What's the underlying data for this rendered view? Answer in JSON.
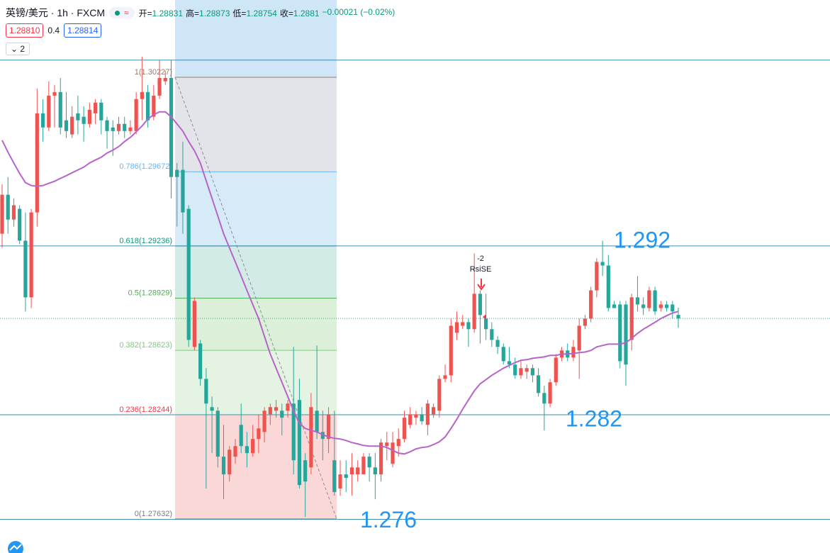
{
  "header": {
    "symbol": "英镑/美元 · 1h · FXCM",
    "ohlc_labels": [
      "开=",
      "高=",
      "低=",
      "收="
    ],
    "change": "−0.00021 (−0.02%)",
    "bid": "1.28810",
    "spread": "0.4",
    "ask": "1.28814",
    "indicators": "2"
  },
  "chart_data": {
    "type": "candlestick",
    "ylim": [
      1.27432,
      1.30681
    ],
    "up_color": "#ef5350",
    "down_color": "#26a69a",
    "ma_color": "#b763c9",
    "open": [
      1.29308,
      1.29537,
      1.29391,
      1.29454,
      1.29267,
      1.28934,
      1.29433,
      1.30015,
      1.29932,
      1.30119,
      1.3014,
      1.29974,
      1.29891,
      1.30015,
      1.29995,
      1.29953,
      1.30015,
      1.30078,
      1.29974,
      1.29932,
      1.29911,
      1.29953,
      1.29911,
      1.29911,
      1.30099,
      1.3014,
      1.29995,
      1.30119,
      1.30203,
      1.30223,
      1.29683,
      1.29683,
      1.29454,
      1.28643,
      1.28663,
      1.28455,
      1.28289,
      1.28268,
      1.27998,
      1.27894,
      1.27998,
      1.28185,
      1.2806,
      1.28019,
      1.28102,
      1.28143,
      1.28247,
      1.28268,
      1.28268,
      1.28268,
      1.2831,
      1.28331,
      1.27977,
      1.27935,
      1.28268,
      1.28143,
      1.28102,
      1.27977,
      1.27811,
      1.27894,
      1.27894,
      1.27894,
      1.27894,
      1.27998,
      1.27935,
      1.27894,
      1.2806,
      1.27956,
      1.2806,
      1.28102,
      1.28185,
      1.28227,
      1.28247,
      1.28185,
      1.28247,
      1.28268,
      1.28455,
      1.28476,
      1.28726,
      1.28767,
      1.28788,
      1.28747,
      1.28955,
      1.28809,
      1.28747,
      1.28684,
      1.28643,
      1.28559,
      1.28539,
      1.28476,
      1.28497,
      1.28518,
      1.28476,
      1.28372,
      1.2831,
      1.28435,
      1.2858,
      1.28622,
      1.2858,
      1.28622,
      1.28767,
      1.28809,
      1.28975,
      1.29142,
      1.29121,
      1.28892,
      1.28892,
      1.28892,
      1.28684,
      1.28934,
      1.28892,
      1.28871,
      1.28975,
      1.28871,
      1.28892,
      1.28892,
      1.28831
    ],
    "high": [
      1.29599,
      1.29641,
      1.29516,
      1.29475,
      1.29433,
      1.29454,
      1.30161,
      1.30099,
      1.30203,
      1.30182,
      1.30223,
      1.3014,
      1.30057,
      1.30119,
      1.30057,
      1.30078,
      1.30099,
      1.30099,
      1.29995,
      1.29974,
      1.29995,
      1.29995,
      1.29974,
      1.3014,
      1.30348,
      1.30182,
      1.30182,
      1.30327,
      1.30265,
      1.30327,
      1.29724,
      1.29849,
      1.29475,
      1.28934,
      1.28684,
      1.28518,
      1.28351,
      1.28289,
      1.28185,
      1.2806,
      1.28102,
      1.2831,
      1.28143,
      1.28185,
      1.28247,
      1.28289,
      1.2831,
      1.28331,
      1.2831,
      1.28331,
      1.28643,
      1.28455,
      1.28019,
      1.28372,
      1.28651,
      1.28268,
      1.28289,
      1.28268,
      1.27977,
      1.27977,
      1.28019,
      1.27977,
      1.28019,
      1.28019,
      1.28019,
      1.28102,
      1.28143,
      1.28143,
      1.28164,
      1.28268,
      1.28289,
      1.28268,
      1.28289,
      1.28331,
      1.2831,
      1.28476,
      1.28539,
      1.28809,
      1.28851,
      1.2883,
      1.28809,
      1.29192,
      1.28975,
      1.28955,
      1.28788,
      1.28705,
      1.28663,
      1.28643,
      1.2858,
      1.28559,
      1.28539,
      1.28539,
      1.28518,
      1.28414,
      1.28455,
      1.28601,
      1.28643,
      1.28663,
      1.28684,
      1.28809,
      1.2883,
      1.28996,
      1.29163,
      1.29267,
      1.29183,
      1.28913,
      1.28913,
      1.28913,
      1.28955,
      1.29059,
      1.28934,
      1.28996,
      1.28996,
      1.28913,
      1.28913,
      1.28913,
      1.28873
    ],
    "low": [
      1.29225,
      1.29308,
      1.2935,
      1.29246,
      1.28851,
      1.28871,
      1.2935,
      1.29849,
      1.29911,
      1.29932,
      1.29891,
      1.2987,
      1.2987,
      1.29891,
      1.29849,
      1.29932,
      1.29953,
      1.29891,
      1.29807,
      1.29766,
      1.29891,
      1.2987,
      1.29891,
      1.29891,
      1.29974,
      1.29932,
      1.29974,
      1.30099,
      1.30182,
      1.29516,
      1.2935,
      1.29308,
      1.28643,
      1.28622,
      1.28414,
      1.27811,
      1.28019,
      1.27935,
      1.27748,
      1.27852,
      1.27956,
      1.28019,
      1.27935,
      1.27998,
      1.28019,
      1.28081,
      1.28185,
      1.28227,
      1.28123,
      1.28227,
      1.27894,
      1.27811,
      1.27644,
      1.27894,
      1.28102,
      1.27977,
      1.28019,
      1.27769,
      1.27769,
      1.2779,
      1.27769,
      1.27852,
      1.27894,
      1.27852,
      1.27748,
      1.27852,
      1.27977,
      1.27935,
      1.27998,
      1.28081,
      1.28164,
      1.28185,
      1.28185,
      1.28123,
      1.28227,
      1.28227,
      1.28435,
      1.28435,
      1.28684,
      1.28747,
      1.28643,
      1.28726,
      1.28663,
      1.28684,
      1.28643,
      1.28601,
      1.28539,
      1.28518,
      1.28455,
      1.28455,
      1.28455,
      1.28435,
      1.28351,
      1.28152,
      1.28289,
      1.28414,
      1.28559,
      1.28559,
      1.28559,
      1.28455,
      1.28747,
      1.28788,
      1.28934,
      1.29059,
      1.28851,
      1.28871,
      1.28518,
      1.28414,
      1.28622,
      1.28851,
      1.2883,
      1.28851,
      1.2883,
      1.28851,
      1.28851,
      1.28809,
      1.28754
    ],
    "close": [
      1.29537,
      1.29391,
      1.29475,
      1.29267,
      1.28934,
      1.29433,
      1.30015,
      1.29932,
      1.30119,
      1.3014,
      1.29932,
      1.29911,
      1.29995,
      1.29974,
      1.29953,
      1.30036,
      1.30078,
      1.29974,
      1.29911,
      1.29911,
      1.29953,
      1.29911,
      1.29932,
      1.30099,
      1.3014,
      1.29974,
      1.30119,
      1.30223,
      1.30223,
      1.29641,
      1.29641,
      1.29433,
      1.28684,
      1.28913,
      1.28455,
      1.2831,
      1.28268,
      1.27998,
      1.27894,
      1.28039,
      1.2806,
      1.2806,
      1.28019,
      1.28102,
      1.28164,
      1.28268,
      1.28289,
      1.28289,
      1.28227,
      1.2831,
      1.27977,
      1.27831,
      1.27852,
      1.28289,
      1.28143,
      1.28102,
      1.28247,
      1.2779,
      1.27894,
      1.27873,
      1.27935,
      1.27935,
      1.27998,
      1.27935,
      1.27894,
      1.28081,
      1.28081,
      1.28081,
      1.28102,
      1.28227,
      1.28247,
      1.28247,
      1.28206,
      1.2831,
      1.28289,
      1.28455,
      1.28476,
      1.28767,
      1.28788,
      1.28788,
      1.28747,
      1.28955,
      1.2883,
      1.28747,
      1.28684,
      1.28643,
      1.28559,
      1.28539,
      1.28476,
      1.28518,
      1.28518,
      1.28476,
      1.28372,
      1.2831,
      1.28435,
      1.2858,
      1.28622,
      1.2858,
      1.28643,
      1.28767,
      1.28809,
      1.28975,
      1.29142,
      1.29121,
      1.28871,
      1.28871,
      1.28559,
      1.28539,
      1.28934,
      1.28892,
      1.28871,
      1.28975,
      1.28851,
      1.28892,
      1.28871,
      1.28851,
      1.2881
    ],
    "ma": [
      1.29857,
      1.29787,
      1.29724,
      1.29662,
      1.29608,
      1.29591,
      1.29587,
      1.29591,
      1.29604,
      1.29616,
      1.29633,
      1.29649,
      1.29666,
      1.29683,
      1.29699,
      1.29724,
      1.29741,
      1.29757,
      1.29782,
      1.29799,
      1.2982,
      1.29849,
      1.29874,
      1.29907,
      1.29941,
      1.29982,
      1.30007,
      1.30024,
      1.30024,
      1.29995,
      1.29953,
      1.29911,
      1.29849,
      1.29795,
      1.29724,
      1.2962,
      1.29516,
      1.29412,
      1.29308,
      1.29225,
      1.29142,
      1.29059,
      1.28975,
      1.28892,
      1.28809,
      1.28705,
      1.28601,
      1.28518,
      1.28435,
      1.28351,
      1.28268,
      1.28193,
      1.28164,
      1.28152,
      1.28143,
      1.28127,
      1.28114,
      1.28106,
      1.28102,
      1.28093,
      1.28081,
      1.28073,
      1.28064,
      1.2806,
      1.2806,
      1.2806,
      1.28052,
      1.28035,
      1.28019,
      1.28014,
      1.28027,
      1.28044,
      1.28052,
      1.28056,
      1.28069,
      1.28085,
      1.28114,
      1.28164,
      1.28218,
      1.28277,
      1.28331,
      1.28385,
      1.28426,
      1.28451,
      1.28476,
      1.28497,
      1.28518,
      1.28534,
      1.28551,
      1.28564,
      1.28568,
      1.28576,
      1.2858,
      1.28584,
      1.28593,
      1.28593,
      1.28601,
      1.28601,
      1.28605,
      1.28609,
      1.28613,
      1.28622,
      1.28643,
      1.28651,
      1.28659,
      1.28659,
      1.28659,
      1.28668,
      1.28693,
      1.28722,
      1.28747,
      1.28767,
      1.28788,
      1.28809,
      1.28826,
      1.28842,
      1.28851
    ],
    "fib": [
      {
        "label": "1(1.30227)",
        "value": 1.30227,
        "color": "#9a7b6f",
        "fill": "#e2e4e9"
      },
      {
        "label": "0.786(1.29672)",
        "value": 1.29672,
        "color": "#64b5f6",
        "fill": "#d6eaf8"
      },
      {
        "label": "0.618(1.29236)",
        "value": 1.29236,
        "color": "#089981",
        "fill": "#d2ebe7"
      },
      {
        "label": "0.5(1.28929)",
        "value": 1.28929,
        "color": "#4caf50",
        "fill": "#dcefd9"
      },
      {
        "label": "0.382(1.28623)",
        "value": 1.28623,
        "color": "#81c784",
        "fill": "#e5f3e2"
      },
      {
        "label": "0.236(1.28244)",
        "value": 1.28244,
        "color": "#f23645",
        "fill": "#fbd8d8"
      },
      {
        "label": "0(1.27632)",
        "value": 1.27632,
        "color": "#787b86",
        "fill": "#fbd8d8"
      }
    ],
    "hlines": [
      {
        "value": 1.30328
      },
      {
        "value": 1.29236,
        "label": "1.292"
      },
      {
        "value": 1.28244,
        "label": "1.282"
      },
      {
        "value": 1.2763,
        "label": "1.276"
      }
    ],
    "signal": [
      "-2",
      "RsiSE"
    ]
  }
}
